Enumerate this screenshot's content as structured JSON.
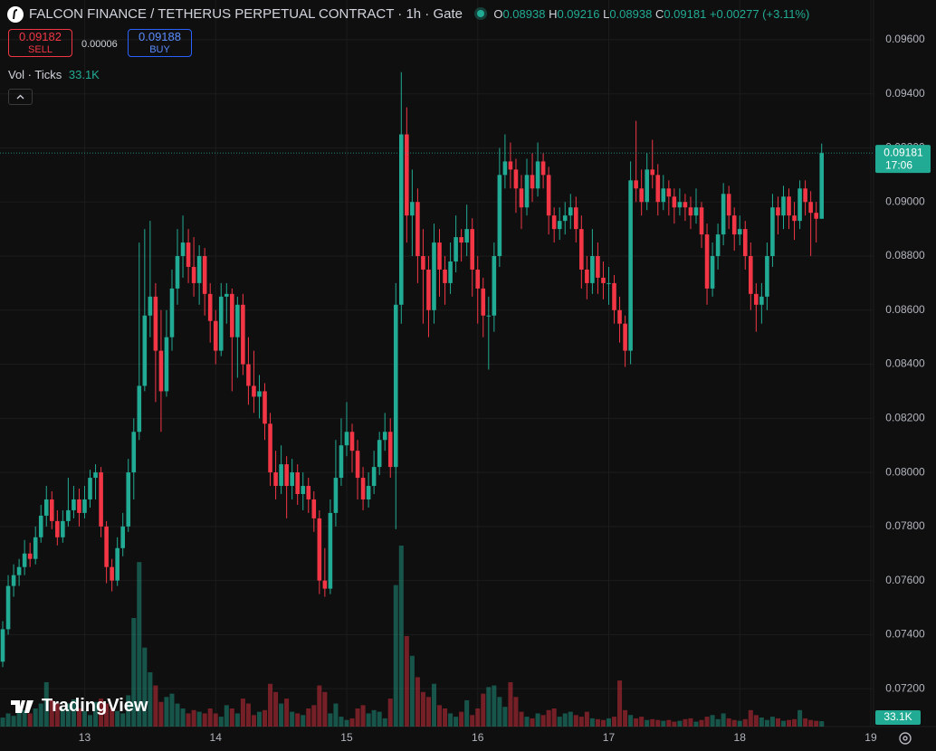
{
  "chart_data": {
    "type": "candlestick",
    "title": "FALCON FINANCE / TETHERUS PERPETUAL CONTRACT · 1h · Gate",
    "ohlc_labels": [
      "O",
      "H",
      "L",
      "C"
    ],
    "change": "+0.00277 (+3.11%)",
    "trade": {
      "sell_price": 0.09182,
      "sell_label": "SELL",
      "spread": 6e-05,
      "buy_price": 0.09188,
      "buy_label": "BUY"
    },
    "volume_title": "Vol · Ticks",
    "volume_label": "33.1K",
    "countdown": "17:06",
    "watermark": "TradingView",
    "up_color": "#22ab94",
    "down_color": "#f23645",
    "grid": true,
    "ylim": [
      0.0706,
      0.09747
    ],
    "yticks": [
      {
        "value": 0.096,
        "label": "0.09600"
      },
      {
        "value": 0.094,
        "label": "0.09400"
      },
      {
        "value": 0.092,
        "label": "0.09200"
      },
      {
        "value": 0.09,
        "label": "0.09000"
      },
      {
        "value": 0.088,
        "label": "0.08800"
      },
      {
        "value": 0.086,
        "label": "0.08600"
      },
      {
        "value": 0.084,
        "label": "0.08400"
      },
      {
        "value": 0.082,
        "label": "0.08200"
      },
      {
        "value": 0.08,
        "label": "0.08000"
      },
      {
        "value": 0.078,
        "label": "0.07800"
      },
      {
        "value": 0.076,
        "label": "0.07600"
      },
      {
        "value": 0.074,
        "label": "0.07400"
      },
      {
        "value": 0.072,
        "label": "0.07200"
      }
    ],
    "categories": [
      null,
      null,
      null,
      null,
      null,
      null,
      null,
      null,
      null,
      null,
      null,
      null,
      null,
      null,
      null,
      "13",
      null,
      null,
      null,
      null,
      null,
      null,
      null,
      null,
      null,
      null,
      null,
      null,
      null,
      null,
      null,
      null,
      null,
      null,
      null,
      null,
      null,
      null,
      null,
      "14",
      null,
      null,
      null,
      null,
      null,
      null,
      null,
      null,
      null,
      null,
      null,
      null,
      null,
      null,
      null,
      null,
      null,
      null,
      null,
      null,
      null,
      null,
      null,
      "15",
      null,
      null,
      null,
      null,
      null,
      null,
      null,
      null,
      null,
      null,
      null,
      null,
      null,
      null,
      null,
      null,
      null,
      null,
      null,
      null,
      null,
      null,
      null,
      "16",
      null,
      null,
      null,
      null,
      null,
      null,
      null,
      null,
      null,
      null,
      null,
      null,
      null,
      null,
      null,
      null,
      null,
      null,
      null,
      null,
      null,
      null,
      null,
      "17",
      null,
      null,
      null,
      null,
      null,
      null,
      null,
      null,
      null,
      null,
      null,
      null,
      null,
      null,
      null,
      null,
      null,
      null,
      null,
      null,
      null,
      null,
      null,
      "18",
      null,
      null,
      null,
      null,
      null,
      null,
      null,
      null,
      null,
      null,
      null,
      null,
      null,
      null,
      null,
      null,
      null,
      null,
      null,
      null,
      null,
      null,
      null,
      "19"
    ],
    "ohlc": [
      [
        0.073,
        0.0745,
        0.0728,
        0.0742
      ],
      [
        0.0742,
        0.0762,
        0.074,
        0.0758
      ],
      [
        0.0758,
        0.0766,
        0.0754,
        0.0762
      ],
      [
        0.0762,
        0.0768,
        0.0758,
        0.0765
      ],
      [
        0.0765,
        0.0775,
        0.0762,
        0.077
      ],
      [
        0.077,
        0.0774,
        0.0765,
        0.0768
      ],
      [
        0.0768,
        0.078,
        0.0766,
        0.0776
      ],
      [
        0.0776,
        0.0788,
        0.0774,
        0.0784
      ],
      [
        0.0784,
        0.0795,
        0.078,
        0.079
      ],
      [
        0.079,
        0.0793,
        0.0779,
        0.0782
      ],
      [
        0.0782,
        0.0786,
        0.0773,
        0.0776
      ],
      [
        0.0776,
        0.0786,
        0.0774,
        0.0782
      ],
      [
        0.0782,
        0.0798,
        0.078,
        0.0786
      ],
      [
        0.0786,
        0.0795,
        0.0783,
        0.079
      ],
      [
        0.079,
        0.0794,
        0.078,
        0.0785
      ],
      [
        0.0785,
        0.0795,
        0.0783,
        0.079
      ],
      [
        0.079,
        0.0801,
        0.0787,
        0.0798
      ],
      [
        0.0798,
        0.0803,
        0.079,
        0.08
      ],
      [
        0.08,
        0.0802,
        0.0776,
        0.078
      ],
      [
        0.078,
        0.0782,
        0.0759,
        0.0765
      ],
      [
        0.0765,
        0.0768,
        0.0756,
        0.076
      ],
      [
        0.076,
        0.0776,
        0.0758,
        0.0772
      ],
      [
        0.0772,
        0.0785,
        0.0769,
        0.078
      ],
      [
        0.078,
        0.0805,
        0.0778,
        0.08
      ],
      [
        0.08,
        0.082,
        0.079,
        0.0815
      ],
      [
        0.0815,
        0.0885,
        0.0812,
        0.0832
      ],
      [
        0.0832,
        0.089,
        0.083,
        0.0858
      ],
      [
        0.0858,
        0.0893,
        0.085,
        0.0865
      ],
      [
        0.0865,
        0.087,
        0.0826,
        0.0845
      ],
      [
        0.0845,
        0.086,
        0.0815,
        0.083
      ],
      [
        0.083,
        0.086,
        0.0828,
        0.085
      ],
      [
        0.085,
        0.0875,
        0.0845,
        0.0868
      ],
      [
        0.0868,
        0.089,
        0.0862,
        0.088
      ],
      [
        0.088,
        0.0895,
        0.0872,
        0.0885
      ],
      [
        0.0885,
        0.089,
        0.087,
        0.0876
      ],
      [
        0.0876,
        0.0887,
        0.0865,
        0.087
      ],
      [
        0.087,
        0.0884,
        0.0862,
        0.088
      ],
      [
        0.088,
        0.0883,
        0.0858,
        0.0866
      ],
      [
        0.0866,
        0.087,
        0.0848,
        0.0856
      ],
      [
        0.0856,
        0.086,
        0.084,
        0.0845
      ],
      [
        0.0845,
        0.087,
        0.0843,
        0.0865
      ],
      [
        0.0865,
        0.087,
        0.0855,
        0.0866
      ],
      [
        0.0866,
        0.0868,
        0.083,
        0.085
      ],
      [
        0.085,
        0.0865,
        0.0835,
        0.0862
      ],
      [
        0.0862,
        0.0866,
        0.0836,
        0.084
      ],
      [
        0.084,
        0.085,
        0.0825,
        0.0832
      ],
      [
        0.0832,
        0.0845,
        0.0822,
        0.0828
      ],
      [
        0.0828,
        0.0836,
        0.082,
        0.083
      ],
      [
        0.083,
        0.0833,
        0.0812,
        0.0818
      ],
      [
        0.0818,
        0.0822,
        0.0795,
        0.08
      ],
      [
        0.08,
        0.0808,
        0.079,
        0.0795
      ],
      [
        0.0795,
        0.081,
        0.0792,
        0.0803
      ],
      [
        0.0803,
        0.0806,
        0.0783,
        0.0795
      ],
      [
        0.0795,
        0.0805,
        0.079,
        0.08
      ],
      [
        0.08,
        0.0803,
        0.0788,
        0.0792
      ],
      [
        0.0792,
        0.08,
        0.0786,
        0.0795
      ],
      [
        0.0795,
        0.0798,
        0.0785,
        0.079
      ],
      [
        0.079,
        0.0793,
        0.0778,
        0.0783
      ],
      [
        0.0783,
        0.0786,
        0.0755,
        0.076
      ],
      [
        0.076,
        0.0772,
        0.0754,
        0.0757
      ],
      [
        0.0757,
        0.079,
        0.0755,
        0.0785
      ],
      [
        0.0785,
        0.0812,
        0.078,
        0.0798
      ],
      [
        0.0798,
        0.082,
        0.0795,
        0.081
      ],
      [
        0.081,
        0.0826,
        0.0806,
        0.0815
      ],
      [
        0.0815,
        0.0818,
        0.08,
        0.0808
      ],
      [
        0.0808,
        0.0812,
        0.079,
        0.0798
      ],
      [
        0.0798,
        0.0802,
        0.0786,
        0.079
      ],
      [
        0.079,
        0.08,
        0.0787,
        0.0795
      ],
      [
        0.0795,
        0.0808,
        0.0792,
        0.0802
      ],
      [
        0.0802,
        0.0815,
        0.0799,
        0.0812
      ],
      [
        0.0812,
        0.0822,
        0.0808,
        0.0815
      ],
      [
        0.0815,
        0.082,
        0.0798,
        0.0802
      ],
      [
        0.0802,
        0.087,
        0.0779,
        0.0862
      ],
      [
        0.0862,
        0.0948,
        0.0855,
        0.0925
      ],
      [
        0.0925,
        0.0935,
        0.0885,
        0.0895
      ],
      [
        0.0895,
        0.0912,
        0.088,
        0.09
      ],
      [
        0.09,
        0.0905,
        0.087,
        0.088
      ],
      [
        0.088,
        0.089,
        0.0855,
        0.0875
      ],
      [
        0.0875,
        0.088,
        0.085,
        0.086
      ],
      [
        0.086,
        0.0892,
        0.0855,
        0.0885
      ],
      [
        0.0885,
        0.089,
        0.0865,
        0.0875
      ],
      [
        0.0875,
        0.088,
        0.0862,
        0.087
      ],
      [
        0.087,
        0.0885,
        0.0866,
        0.0878
      ],
      [
        0.0878,
        0.0895,
        0.0874,
        0.0887
      ],
      [
        0.0887,
        0.089,
        0.0878,
        0.0885
      ],
      [
        0.0885,
        0.0899,
        0.088,
        0.089
      ],
      [
        0.089,
        0.0894,
        0.0865,
        0.0875
      ],
      [
        0.0875,
        0.088,
        0.0855,
        0.0868
      ],
      [
        0.0868,
        0.0872,
        0.085,
        0.0858
      ],
      [
        0.0858,
        0.0865,
        0.0838,
        0.0858
      ],
      [
        0.0858,
        0.0885,
        0.0852,
        0.088
      ],
      [
        0.088,
        0.092,
        0.0876,
        0.091
      ],
      [
        0.091,
        0.0925,
        0.0905,
        0.0915
      ],
      [
        0.0915,
        0.0922,
        0.0905,
        0.0912
      ],
      [
        0.0912,
        0.0916,
        0.0896,
        0.0905
      ],
      [
        0.0905,
        0.091,
        0.089,
        0.0898
      ],
      [
        0.0898,
        0.0916,
        0.0895,
        0.091
      ],
      [
        0.091,
        0.0918,
        0.09,
        0.0905
      ],
      [
        0.0905,
        0.0922,
        0.0902,
        0.0915
      ],
      [
        0.0915,
        0.0918,
        0.0905,
        0.091
      ],
      [
        0.091,
        0.0913,
        0.0888,
        0.0895
      ],
      [
        0.0895,
        0.0898,
        0.0885,
        0.089
      ],
      [
        0.089,
        0.0898,
        0.0886,
        0.0893
      ],
      [
        0.0893,
        0.09,
        0.0888,
        0.0895
      ],
      [
        0.0895,
        0.0903,
        0.089,
        0.0898
      ],
      [
        0.0898,
        0.0902,
        0.0885,
        0.089
      ],
      [
        0.089,
        0.0895,
        0.0868,
        0.0875
      ],
      [
        0.0875,
        0.088,
        0.0864,
        0.087
      ],
      [
        0.087,
        0.089,
        0.0866,
        0.088
      ],
      [
        0.088,
        0.0885,
        0.0866,
        0.0872
      ],
      [
        0.0872,
        0.0878,
        0.0864,
        0.087
      ],
      [
        0.087,
        0.0876,
        0.0862,
        0.087
      ],
      [
        0.087,
        0.0873,
        0.0855,
        0.086
      ],
      [
        0.086,
        0.0865,
        0.0848,
        0.0855
      ],
      [
        0.0855,
        0.0858,
        0.0839,
        0.0845
      ],
      [
        0.0845,
        0.0915,
        0.084,
        0.0908
      ],
      [
        0.0908,
        0.093,
        0.09,
        0.0905
      ],
      [
        0.0905,
        0.0912,
        0.0895,
        0.09
      ],
      [
        0.09,
        0.0918,
        0.0897,
        0.0912
      ],
      [
        0.0912,
        0.0923,
        0.0905,
        0.091
      ],
      [
        0.091,
        0.0914,
        0.0895,
        0.09
      ],
      [
        0.09,
        0.091,
        0.0897,
        0.0905
      ],
      [
        0.0905,
        0.0908,
        0.0895,
        0.0902
      ],
      [
        0.0902,
        0.0905,
        0.0892,
        0.0898
      ],
      [
        0.0898,
        0.0905,
        0.0895,
        0.09
      ],
      [
        0.09,
        0.0903,
        0.0893,
        0.0898
      ],
      [
        0.0898,
        0.0902,
        0.089,
        0.0895
      ],
      [
        0.0895,
        0.0905,
        0.0892,
        0.0898
      ],
      [
        0.0898,
        0.09,
        0.0883,
        0.0888
      ],
      [
        0.0888,
        0.0892,
        0.0862,
        0.0868
      ],
      [
        0.0868,
        0.0885,
        0.0865,
        0.088
      ],
      [
        0.088,
        0.0892,
        0.0875,
        0.0888
      ],
      [
        0.0888,
        0.0907,
        0.0884,
        0.0903
      ],
      [
        0.0903,
        0.0906,
        0.089,
        0.0895
      ],
      [
        0.0895,
        0.0898,
        0.0882,
        0.0888
      ],
      [
        0.0888,
        0.0895,
        0.0884,
        0.089
      ],
      [
        0.089,
        0.0893,
        0.0875,
        0.088
      ],
      [
        0.088,
        0.0885,
        0.086,
        0.0866
      ],
      [
        0.0866,
        0.087,
        0.0852,
        0.0862
      ],
      [
        0.0862,
        0.087,
        0.0855,
        0.0865
      ],
      [
        0.0865,
        0.0885,
        0.086,
        0.088
      ],
      [
        0.088,
        0.0903,
        0.0876,
        0.0898
      ],
      [
        0.0898,
        0.0902,
        0.0888,
        0.0895
      ],
      [
        0.0895,
        0.0906,
        0.089,
        0.0902
      ],
      [
        0.0902,
        0.0905,
        0.089,
        0.0895
      ],
      [
        0.0895,
        0.09,
        0.0886,
        0.0893
      ],
      [
        0.0893,
        0.0908,
        0.089,
        0.0905
      ],
      [
        0.0905,
        0.0908,
        0.0895,
        0.09
      ],
      [
        0.09,
        0.0904,
        0.088,
        0.0896
      ],
      [
        0.0896,
        0.09,
        0.0885,
        0.08938
      ],
      [
        0.08938,
        0.09216,
        0.08938,
        0.09181
      ],
      null,
      null,
      null,
      null,
      null,
      null,
      null,
      null,
      null
    ],
    "volume": [
      55,
      80,
      65,
      110,
      100,
      80,
      110,
      140,
      270,
      160,
      140,
      110,
      140,
      165,
      110,
      95,
      70,
      150,
      170,
      140,
      110,
      95,
      80,
      190,
      660,
      1000,
      480,
      330,
      250,
      150,
      180,
      200,
      140,
      110,
      80,
      100,
      90,
      80,
      110,
      80,
      60,
      130,
      110,
      80,
      170,
      140,
      70,
      90,
      100,
      260,
      210,
      140,
      170,
      90,
      80,
      70,
      110,
      130,
      250,
      210,
      80,
      140,
      60,
      40,
      50,
      110,
      130,
      80,
      100,
      90,
      50,
      170,
      860,
      1100,
      550,
      430,
      300,
      210,
      180,
      260,
      130,
      110,
      80,
      60,
      90,
      160,
      70,
      110,
      200,
      240,
      250,
      180,
      120,
      270,
      180,
      90,
      60,
      50,
      80,
      70,
      100,
      110,
      60,
      80,
      90,
      70,
      60,
      90,
      50,
      45,
      40,
      50,
      60,
      280,
      100,
      70,
      50,
      60,
      40,
      45,
      40,
      35,
      40,
      30,
      35,
      45,
      50,
      30,
      40,
      60,
      70,
      45,
      80,
      50,
      40,
      35,
      45,
      100,
      70,
      55,
      40,
      60,
      50,
      35,
      40,
      45,
      100,
      50,
      40,
      35,
      33.1,
      null,
      null,
      null,
      null,
      null,
      null,
      null,
      null,
      null
    ]
  }
}
